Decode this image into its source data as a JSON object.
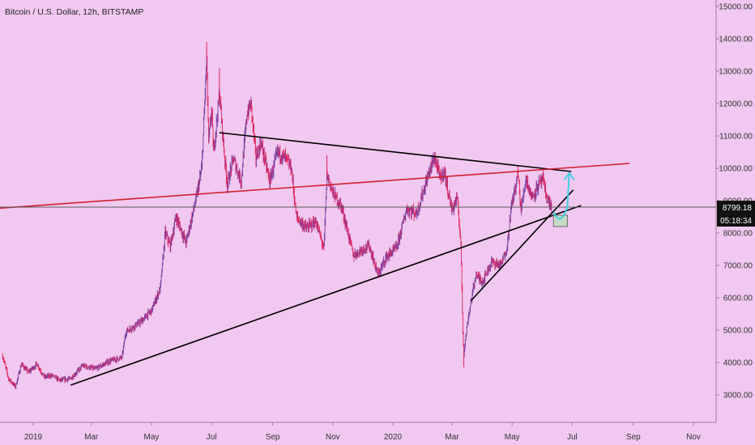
{
  "header": {
    "title": "Bitcoin / U.S. Dollar, 12h, BITSTAMP"
  },
  "chart_data": {
    "type": "candlestick",
    "x_tick_labels": [
      "2019",
      "Mar",
      "May",
      "Jul",
      "Sep",
      "Nov",
      "2020",
      "Mar",
      "May",
      "Jul",
      "Sep",
      "Nov"
    ],
    "y_tick_values": [
      3000,
      4000,
      5000,
      6000,
      7000,
      8000,
      9000,
      10000,
      11000,
      12000,
      13000,
      14000,
      15000
    ],
    "y_tick_labels": [
      "3000.00",
      "4000.00",
      "5000.00",
      "6000.00",
      "7000.00",
      "8000.00",
      "9000.00",
      "10000.00",
      "11000.00",
      "12000.00",
      "13000.00",
      "14000.00",
      "15000.00"
    ],
    "ylim": [
      2300,
      15300
    ],
    "last_price": 8799.18,
    "last_price_label": "8799.18",
    "countdown_label": "05:18:34",
    "price_path": [
      [
        "2018-12-01",
        4200
      ],
      [
        "2018-12-07",
        3500
      ],
      [
        "2018-12-14",
        3250
      ],
      [
        "2018-12-20",
        3950
      ],
      [
        "2018-12-27",
        3700
      ],
      [
        "2019-01-05",
        3950
      ],
      [
        "2019-01-12",
        3550
      ],
      [
        "2019-01-20",
        3600
      ],
      [
        "2019-01-28",
        3450
      ],
      [
        "2019-02-08",
        3500
      ],
      [
        "2019-02-20",
        3900
      ],
      [
        "2019-03-05",
        3800
      ],
      [
        "2019-03-20",
        4050
      ],
      [
        "2019-04-01",
        4150
      ],
      [
        "2019-04-05",
        4950
      ],
      [
        "2019-04-20",
        5250
      ],
      [
        "2019-05-01",
        5600
      ],
      [
        "2019-05-10",
        6300
      ],
      [
        "2019-05-15",
        8000
      ],
      [
        "2019-05-20",
        7600
      ],
      [
        "2019-05-26",
        8500
      ],
      [
        "2019-06-05",
        7700
      ],
      [
        "2019-06-15",
        9000
      ],
      [
        "2019-06-21",
        10000
      ],
      [
        "2019-06-26",
        13400
      ],
      [
        "2019-06-28",
        10800
      ],
      [
        "2019-07-01",
        11800
      ],
      [
        "2019-07-03",
        10500
      ],
      [
        "2019-07-09",
        12300
      ],
      [
        "2019-07-14",
        10400
      ],
      [
        "2019-07-17",
        9500
      ],
      [
        "2019-07-23",
        10300
      ],
      [
        "2019-07-31",
        9600
      ],
      [
        "2019-08-06",
        11700
      ],
      [
        "2019-08-10",
        12000
      ],
      [
        "2019-08-15",
        10300
      ],
      [
        "2019-08-20",
        10800
      ],
      [
        "2019-08-29",
        9600
      ],
      [
        "2019-09-06",
        10500
      ],
      [
        "2019-09-14",
        10300
      ],
      [
        "2019-09-20",
        10000
      ],
      [
        "2019-09-25",
        8500
      ],
      [
        "2019-10-05",
        8150
      ],
      [
        "2019-10-15",
        8350
      ],
      [
        "2019-10-23",
        7500
      ],
      [
        "2019-10-26",
        9800
      ],
      [
        "2019-11-01",
        9250
      ],
      [
        "2019-11-10",
        8800
      ],
      [
        "2019-11-22",
        7300
      ],
      [
        "2019-12-01",
        7500
      ],
      [
        "2019-12-08",
        7600
      ],
      [
        "2019-12-17",
        6700
      ],
      [
        "2019-12-25",
        7250
      ],
      [
        "2020-01-05",
        7550
      ],
      [
        "2020-01-15",
        8750
      ],
      [
        "2020-01-25",
        8600
      ],
      [
        "2020-02-05",
        9700
      ],
      [
        "2020-02-12",
        10350
      ],
      [
        "2020-02-18",
        9700
      ],
      [
        "2020-02-22",
        9900
      ],
      [
        "2020-03-01",
        8700
      ],
      [
        "2020-03-06",
        9100
      ],
      [
        "2020-03-10",
        7700
      ],
      [
        "2020-03-12",
        4900
      ],
      [
        "2020-03-13",
        4300
      ],
      [
        "2020-03-17",
        5300
      ],
      [
        "2020-03-25",
        6700
      ],
      [
        "2020-04-01",
        6500
      ],
      [
        "2020-04-10",
        7100
      ],
      [
        "2020-04-20",
        7000
      ],
      [
        "2020-04-26",
        7600
      ],
      [
        "2020-04-30",
        8800
      ],
      [
        "2020-05-07",
        9800
      ],
      [
        "2020-05-10",
        8700
      ],
      [
        "2020-05-15",
        9700
      ],
      [
        "2020-05-21",
        9100
      ],
      [
        "2020-05-28",
        9500
      ],
      [
        "2020-06-01",
        9650
      ],
      [
        "2020-06-05",
        9100
      ],
      [
        "2020-06-10",
        8800
      ]
    ],
    "extremes": [
      [
        "2019-06-26",
        13900
      ],
      [
        "2019-03-15",
        3900
      ],
      [
        "2019-07-09",
        13100
      ],
      [
        "2020-03-13",
        3850
      ],
      [
        "2020-02-13",
        10500
      ],
      [
        "2019-10-26",
        10400
      ],
      [
        "2020-05-07",
        10080
      ]
    ],
    "lines": [
      {
        "name": "upper-trendline",
        "color": "#000000",
        "from": [
          "2019-07-09",
          11100
        ],
        "to": [
          "2020-06-30",
          9900
        ]
      },
      {
        "name": "lower-trendline",
        "color": "#000000",
        "from": [
          "2019-02-08",
          3300
        ],
        "to": [
          "2020-07-10",
          8850
        ]
      },
      {
        "name": "steep-trendline",
        "color": "#000000",
        "from": [
          "2020-03-20",
          5900
        ],
        "to": [
          "2020-07-02",
          9330
        ]
      },
      {
        "name": "red-trendline",
        "color": "#d1212f",
        "from": [
          "2018-11-25",
          8760
        ],
        "to": [
          "2020-08-28",
          10150
        ]
      },
      {
        "name": "current-price-line",
        "color": "#5a5a5a",
        "from": [
          "2018-11-25",
          8799.18
        ],
        "to": [
          "2020-12-20",
          8799.18
        ]
      }
    ],
    "zone": {
      "from": [
        "2020-06-12",
        8200
      ],
      "to": [
        "2020-06-26",
        8550
      ],
      "fill": "#c6dcc6",
      "stroke": "#6b6b6b"
    },
    "projection": {
      "color": "#3fd0e0",
      "points": [
        [
          "2020-06-12",
          8650
        ],
        [
          "2020-06-19",
          8420
        ],
        [
          "2020-06-26",
          8800
        ],
        [
          "2020-06-28",
          9850
        ]
      ]
    },
    "grid": false,
    "colors": {
      "background": "#f1c8f0",
      "candle_down": "#e0245e",
      "candle_up": "#7b3fa0",
      "price_tag_bg": "#111111",
      "price_tag_text": "#ffffff",
      "axis_text": "#333333"
    }
  }
}
